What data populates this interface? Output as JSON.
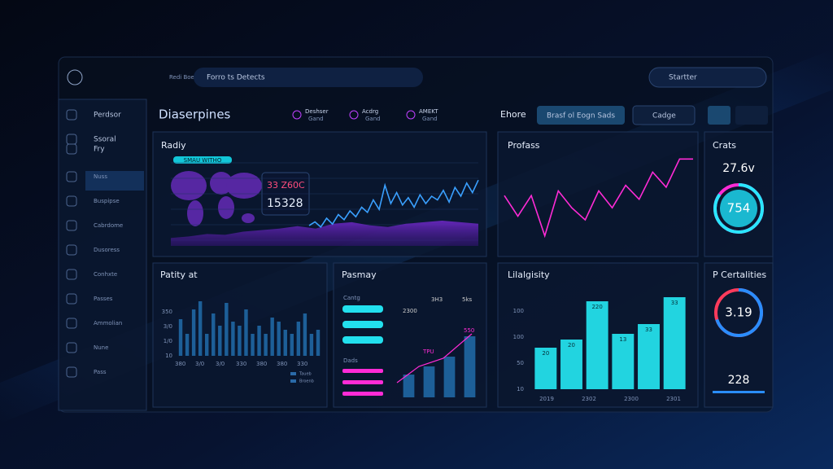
{
  "top_bar": {
    "brand": "Redi Boer",
    "search": "Forro ts Detects",
    "user": "Startter"
  },
  "sidebar": {
    "items": [
      "Perdsor",
      "Ssoral",
      "Fry",
      "Nuss",
      "Buspipse",
      "Cabrdome",
      "Dusoress",
      "Conhxte",
      "Passes",
      "Ammolian",
      "Nune",
      "Pass"
    ]
  },
  "header": {
    "title": "Diaserpines",
    "tabs": [
      {
        "label": "Deshser",
        "sub": "Gand"
      },
      {
        "label": "Acdrg",
        "sub": "Gand"
      },
      {
        "label": "AMEKT",
        "sub": "Gand"
      }
    ],
    "section": "Ehore",
    "button": "Brasf ol Eogn Sads",
    "dropdown": "Cadge"
  },
  "radiy": {
    "title": "Radiy",
    "badge": "SMAU WITHO",
    "card_label": "33 Z60C",
    "card_value": "15328",
    "ylim": [
      0,
      100
    ],
    "line": [
      20,
      25,
      18,
      30,
      22,
      35,
      28,
      40,
      32,
      45,
      38,
      55,
      42,
      75,
      50,
      65,
      48,
      58,
      45,
      62,
      50,
      60,
      55,
      68,
      52,
      72,
      60,
      78,
      65,
      82
    ],
    "area": [
      10,
      12,
      15,
      14,
      18,
      20,
      22,
      25,
      22,
      28,
      30,
      26,
      24,
      28,
      30,
      32,
      30,
      28
    ]
  },
  "profass": {
    "title": "Profass",
    "ylim": [
      0,
      100
    ],
    "values": [
      52,
      30,
      52,
      9,
      57,
      39,
      26,
      57,
      39,
      63,
      48,
      77,
      61,
      91,
      91
    ]
  },
  "crats": {
    "title": "Crats",
    "value": "27.6v",
    "gauge_label": "754",
    "gauge": 85
  },
  "patity": {
    "title": "Patity at",
    "y_labels": [
      "350",
      "3/0",
      "1/0",
      "10"
    ],
    "x_labels": [
      "380",
      "3/0",
      "3/0",
      "330",
      "380",
      "380",
      "330"
    ],
    "legend": [
      "Taueb",
      "Broenb"
    ],
    "ylim": [
      0,
      80
    ],
    "values": [
      45,
      27,
      57,
      67,
      27,
      52,
      37,
      65,
      42,
      37,
      57,
      27,
      37,
      27,
      47,
      42,
      32,
      27,
      42,
      52,
      27,
      32
    ]
  },
  "pasmay": {
    "title": "Pasmay",
    "group1": "Cantg",
    "group2": "Dads",
    "chart_labels": [
      "2300",
      "3H3",
      "5ks",
      "550",
      "TPU"
    ],
    "ylim": [
      0,
      100
    ],
    "values": [
      28,
      38,
      50,
      75
    ]
  },
  "lilalgisity": {
    "title": "Lilalgisity",
    "y_labels": [
      "100",
      "100",
      "50",
      "10"
    ],
    "x_labels": [
      "2019",
      "2302",
      "2300",
      "2301"
    ],
    "ylim": [
      0,
      130
    ],
    "values": [
      51,
      61,
      108,
      68,
      80,
      113
    ],
    "bar_tags": [
      "20",
      "20",
      "220",
      "13",
      "33",
      "33"
    ]
  },
  "certalities": {
    "title": "P Certalities",
    "gauge_label": "3.19",
    "gauge": 70,
    "value": "228"
  }
}
